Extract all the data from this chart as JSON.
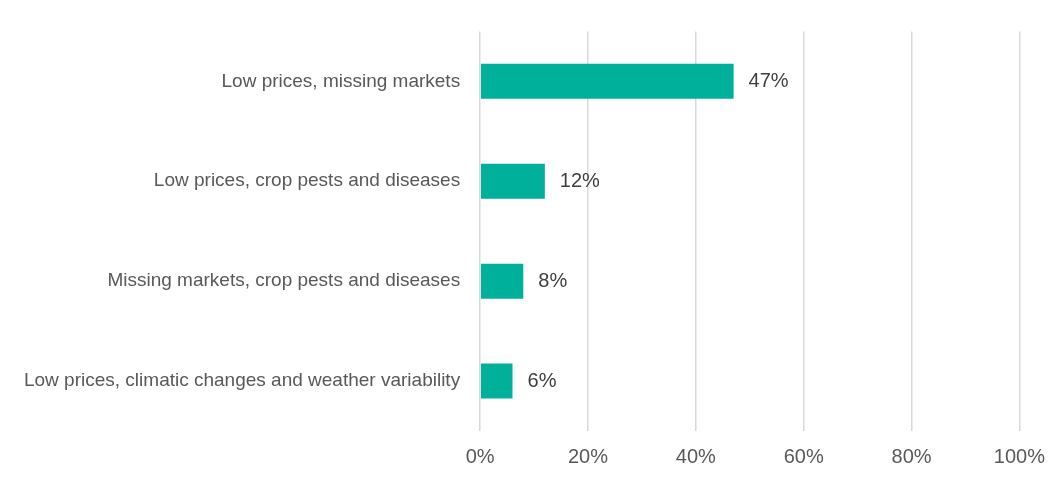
{
  "chart_data": {
    "type": "bar",
    "orientation": "horizontal",
    "categories": [
      "Low prices, missing markets",
      "Low prices, crop pests and diseases",
      "Missing markets, crop pests and diseases",
      "Low prices, climatic changes and weather variability"
    ],
    "values": [
      47,
      12,
      8,
      6
    ],
    "value_labels": [
      "47%",
      "12%",
      "8%",
      "6%"
    ],
    "color": "#00b09b",
    "xlim": [
      0,
      100
    ],
    "xticks": [
      {
        "value": 0,
        "label": "0%"
      },
      {
        "value": 20,
        "label": "20%"
      },
      {
        "value": 40,
        "label": "40%"
      },
      {
        "value": 60,
        "label": "60%"
      },
      {
        "value": 80,
        "label": "80%"
      },
      {
        "value": 100,
        "label": "100%"
      }
    ],
    "grid": "x",
    "legend": false
  }
}
